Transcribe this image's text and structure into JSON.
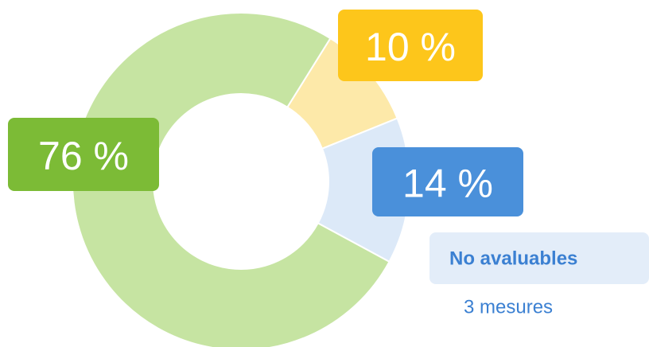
{
  "chart_data": {
    "type": "pie",
    "values": [
      10,
      14,
      76
    ],
    "value_labels": [
      "10 %",
      "14 %",
      "76 %"
    ],
    "colors": [
      "#fde9a9",
      "#dce9f8",
      "#c6e4a2"
    ],
    "label_colors": [
      "#fdc61b",
      "#4a90da",
      "#7cbb36"
    ]
  },
  "legend": {
    "title": "No avaluables",
    "subtitle": "3 mesures"
  }
}
